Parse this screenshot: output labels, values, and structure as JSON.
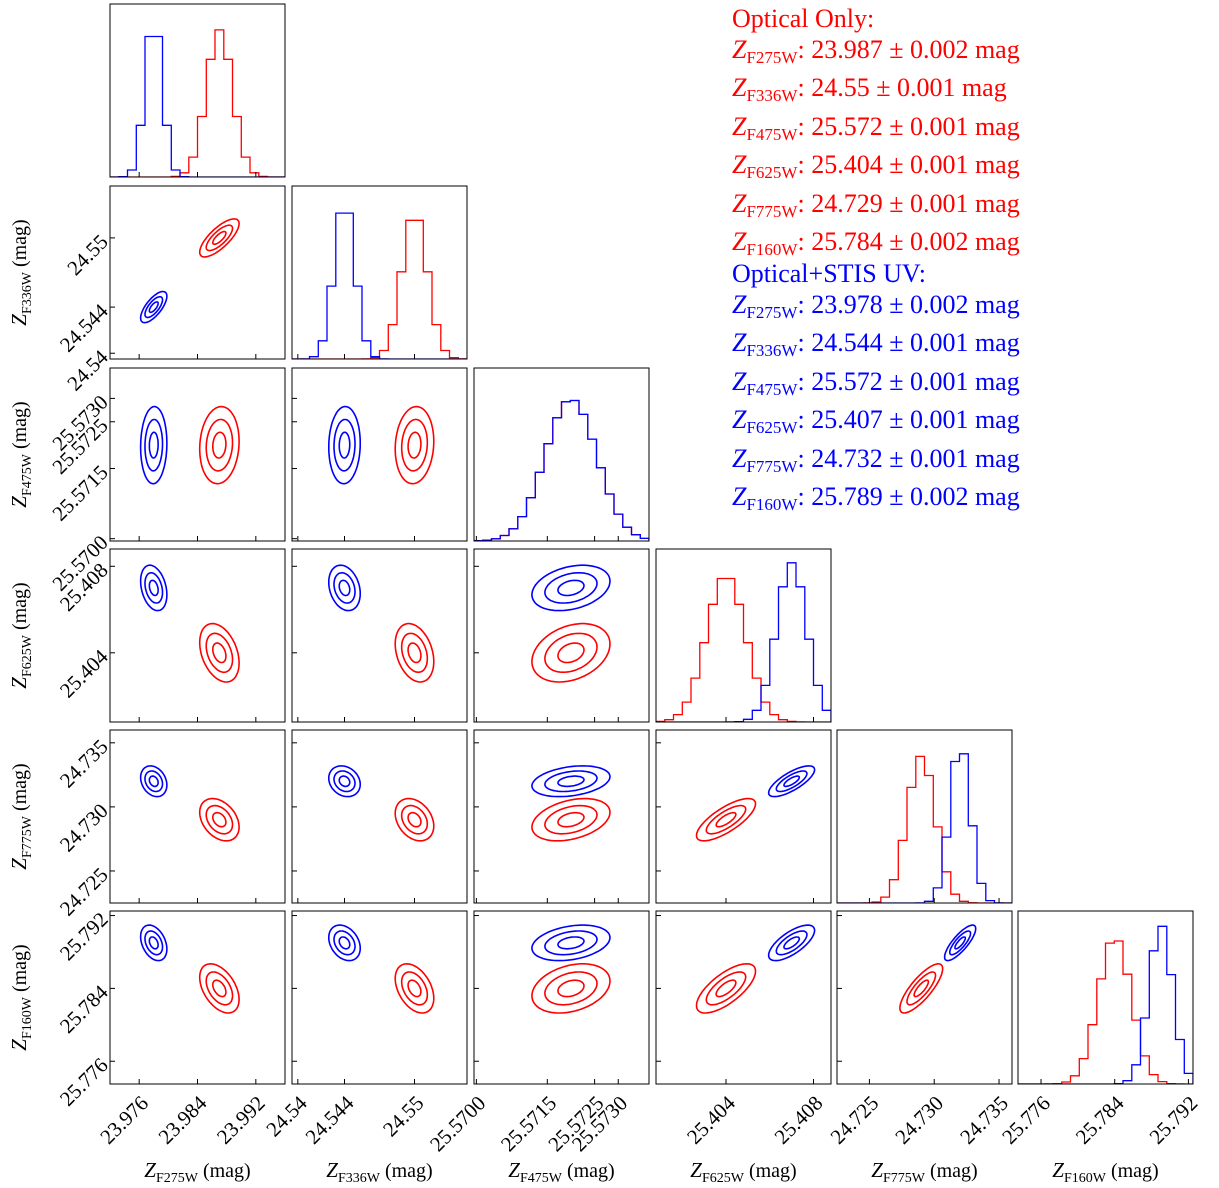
{
  "legend": {
    "optical": {
      "title": "Optical Only:",
      "color": "#ff0000",
      "rows": [
        {
          "sym": "Z",
          "sub": "F275W",
          "text": ": 23.987 ± 0.002 mag"
        },
        {
          "sym": "Z",
          "sub": "F336W",
          "text": ": 24.55 ± 0.001 mag"
        },
        {
          "sym": "Z",
          "sub": "F475W",
          "text": ": 25.572 ± 0.001 mag"
        },
        {
          "sym": "Z",
          "sub": "F625W",
          "text": ": 25.404 ± 0.001 mag"
        },
        {
          "sym": "Z",
          "sub": "F775W",
          "text": ": 24.729 ± 0.001 mag"
        },
        {
          "sym": "Z",
          "sub": "F160W",
          "text": ": 25.784 ± 0.002 mag"
        }
      ]
    },
    "stis": {
      "title": "Optical+STIS UV:",
      "color": "#0000ff",
      "rows": [
        {
          "sym": "Z",
          "sub": "F275W",
          "text": ": 23.978 ± 0.002 mag"
        },
        {
          "sym": "Z",
          "sub": "F336W",
          "text": ": 24.544 ± 0.001 mag"
        },
        {
          "sym": "Z",
          "sub": "F475W",
          "text": ": 25.572 ± 0.001 mag"
        },
        {
          "sym": "Z",
          "sub": "F625W",
          "text": ": 25.407 ± 0.001 mag"
        },
        {
          "sym": "Z",
          "sub": "F775W",
          "text": ": 24.732 ± 0.001 mag"
        },
        {
          "sym": "Z",
          "sub": "F160W",
          "text": ": 25.789 ± 0.002 mag"
        }
      ]
    }
  },
  "chart_data": {
    "type": "corner",
    "colors": {
      "optical": "#ff0000",
      "stis": "#0000ff"
    },
    "parameters": [
      {
        "sym": "Z",
        "sub": "F275W",
        "unit": " (mag)",
        "range": [
          23.972,
          23.996
        ],
        "ticks": [
          23.976,
          23.984,
          23.992
        ],
        "tick_labels": [
          "23.976",
          "23.984",
          "23.992"
        ]
      },
      {
        "sym": "Z",
        "sub": "F336W",
        "unit": " (mag)",
        "range": [
          24.5395,
          24.5545
        ],
        "ticks": [
          24.54,
          24.544,
          24.55
        ],
        "tick_labels": [
          "24.54",
          "24.544",
          "24.55"
        ]
      },
      {
        "sym": "Z",
        "sub": "F475W",
        "unit": " (mag)",
        "range": [
          25.56995,
          25.57365
        ],
        "ticks": [
          25.57,
          25.5715,
          25.5725,
          25.573
        ],
        "tick_labels": [
          "25.5700",
          "25.5715",
          "25.5725",
          "25.5730"
        ]
      },
      {
        "sym": "Z",
        "sub": "F625W",
        "unit": " (mag)",
        "range": [
          25.4008,
          25.4088
        ],
        "ticks": [
          25.404,
          25.408
        ],
        "tick_labels": [
          "25.404",
          "25.408"
        ]
      },
      {
        "sym": "Z",
        "sub": "F775W",
        "unit": " (mag)",
        "range": [
          24.7225,
          24.736
        ],
        "ticks": [
          24.725,
          24.73,
          24.735
        ],
        "tick_labels": [
          "24.725",
          "24.730",
          "24.735"
        ]
      },
      {
        "sym": "Z",
        "sub": "F160W",
        "unit": " (mag)",
        "range": [
          25.7735,
          25.7925
        ],
        "ticks": [
          25.776,
          25.784,
          25.792
        ],
        "tick_labels": [
          "25.776",
          "25.784",
          "25.792"
        ]
      }
    ],
    "posteriors": {
      "optical": {
        "mean": [
          23.987,
          24.55,
          25.572,
          25.404,
          24.729,
          25.784
        ],
        "sd": [
          0.0018,
          0.0011,
          0.00055,
          0.0009,
          0.0011,
          0.0018
        ],
        "corr": [
          [
            1,
            0.75,
            0.1,
            -0.35,
            -0.35,
            -0.45
          ],
          [
            0.75,
            1,
            0.1,
            -0.3,
            -0.3,
            -0.4
          ],
          [
            0.1,
            0.1,
            1,
            0.3,
            0.35,
            0.3
          ],
          [
            -0.35,
            -0.3,
            0.3,
            1,
            0.75,
            0.7
          ],
          [
            -0.35,
            -0.3,
            0.35,
            0.75,
            1,
            0.8
          ],
          [
            -0.45,
            -0.4,
            0.3,
            0.7,
            0.8,
            1
          ]
        ]
      },
      "stis": {
        "mean": [
          23.978,
          24.544,
          25.572,
          25.407,
          24.732,
          25.789
        ],
        "sd": [
          0.0012,
          0.0009,
          0.00055,
          0.0007,
          0.0008,
          0.0013
        ],
        "corr": [
          [
            1,
            0.7,
            0.05,
            -0.3,
            -0.25,
            -0.35
          ],
          [
            0.7,
            1,
            0.05,
            -0.25,
            -0.2,
            -0.3
          ],
          [
            0.05,
            0.05,
            1,
            0.3,
            0.3,
            0.3
          ],
          [
            -0.3,
            -0.25,
            0.3,
            1,
            0.75,
            0.7
          ],
          [
            -0.25,
            -0.2,
            0.3,
            0.75,
            1,
            0.8
          ],
          [
            -0.35,
            -0.3,
            0.3,
            0.7,
            0.8,
            1
          ]
        ]
      }
    },
    "contour_levels_sigma": [
      0.5,
      1,
      1.5
    ],
    "histogram_bins": 20
  }
}
